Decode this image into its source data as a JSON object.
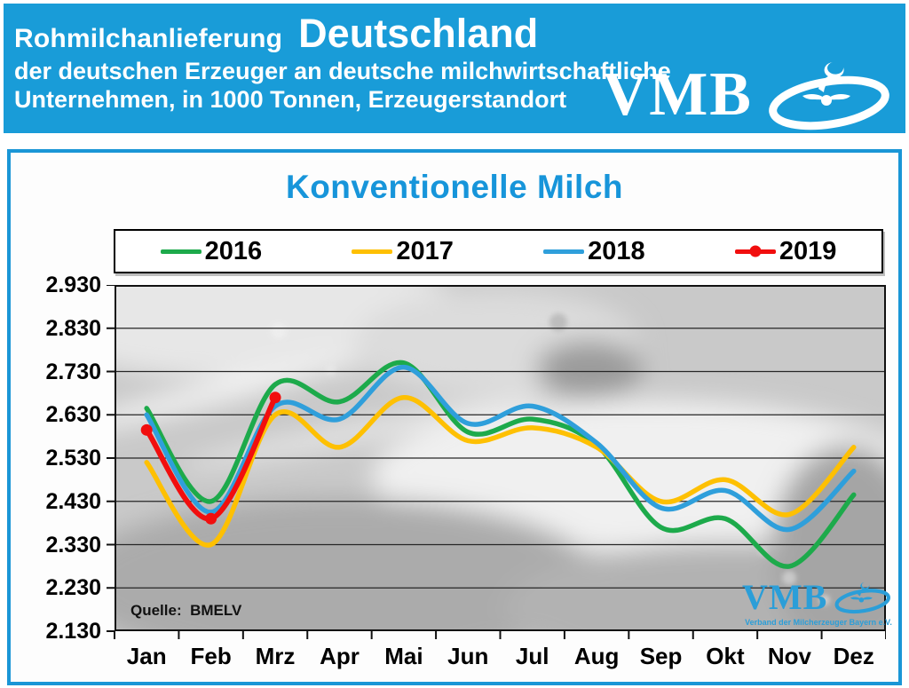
{
  "header": {
    "bg_color": "#199cd8",
    "title_prefix": "Rohmilchanlieferung",
    "title_country": "Deutschland",
    "subtitle_line1": "der deutschen Erzeuger an deutsche milchwirtschaftliche",
    "subtitle_line2": "Unternehmen, in 1000 Tonnen, Erzeugerstandort",
    "logo_text": "VMB"
  },
  "panel": {
    "title": "Konventionelle Milch",
    "title_color": "#1795da",
    "source_label": "Quelle:  BMELV",
    "watermark": {
      "logo_text": "VMB",
      "caption": "Verband der Milcherzeuger Bayern e.V."
    }
  },
  "chart_data": {
    "type": "line",
    "title": "Konventionelle Milch",
    "unit": "1000 Tonnen",
    "categories": [
      "Jan",
      "Feb",
      "Mrz",
      "Apr",
      "Mai",
      "Jun",
      "Jul",
      "Aug",
      "Sep",
      "Okt",
      "Nov",
      "Dez"
    ],
    "ylim": [
      2130,
      2930
    ],
    "yticks": {
      "values": [
        2930,
        2830,
        2730,
        2630,
        2530,
        2430,
        2330,
        2230,
        2130
      ],
      "labels": [
        "2.930",
        "2.830",
        "2.730",
        "2.630",
        "2.530",
        "2.430",
        "2.330",
        "2.230",
        "2.130"
      ]
    },
    "grid": "horizontal",
    "legend_position": "top",
    "smooth": true,
    "series": [
      {
        "name": "2016",
        "color": "#1daa4b",
        "marker": false,
        "values": [
          2645,
          2430,
          2700,
          2660,
          2750,
          2590,
          2620,
          2560,
          2370,
          2390,
          2280,
          2445
        ]
      },
      {
        "name": "2017",
        "color": "#fec002",
        "marker": false,
        "values": [
          2520,
          2330,
          2630,
          2555,
          2670,
          2570,
          2600,
          2555,
          2430,
          2480,
          2400,
          2555
        ]
      },
      {
        "name": "2018",
        "color": "#2f9fdb",
        "marker": false,
        "values": [
          2630,
          2405,
          2650,
          2620,
          2740,
          2610,
          2650,
          2565,
          2415,
          2455,
          2365,
          2500
        ]
      },
      {
        "name": "2019",
        "color": "#f10e0e",
        "marker": true,
        "values": [
          2595,
          2390,
          2670
        ]
      }
    ]
  }
}
